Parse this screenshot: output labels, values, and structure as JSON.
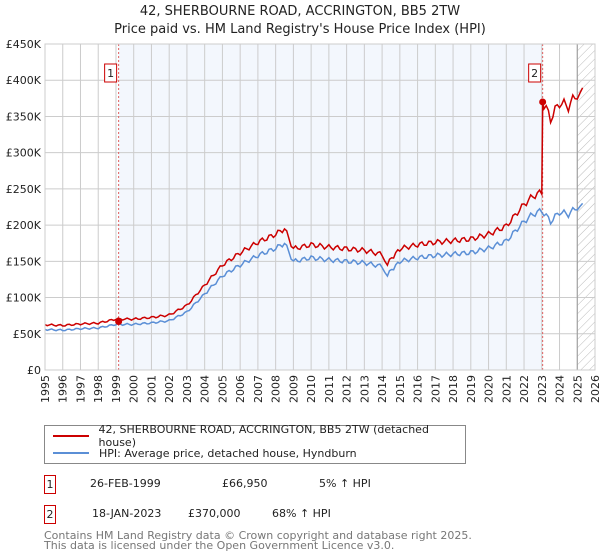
{
  "chart_data": {
    "type": "line",
    "title": "42, SHERBOURNE ROAD, ACCRINGTON, BB5 2TW",
    "subtitle": "Price paid vs. HM Land Registry's House Price Index (HPI)",
    "xlim": [
      1995,
      2026
    ],
    "ylim": [
      0,
      450000
    ],
    "x_ticks": [
      "1995",
      "1996",
      "1997",
      "1998",
      "1999",
      "2000",
      "2001",
      "2002",
      "2003",
      "2004",
      "2005",
      "2006",
      "2007",
      "2008",
      "2009",
      "2010",
      "2011",
      "2012",
      "2013",
      "2014",
      "2015",
      "2016",
      "2017",
      "2018",
      "2019",
      "2020",
      "2021",
      "2022",
      "2023",
      "2024",
      "2025",
      "2026"
    ],
    "y_ticks": [
      {
        "v": 0,
        "label": "£0"
      },
      {
        "v": 50000,
        "label": "£50K"
      },
      {
        "v": 100000,
        "label": "£100K"
      },
      {
        "v": 150000,
        "label": "£150K"
      },
      {
        "v": 200000,
        "label": "£200K"
      },
      {
        "v": 250000,
        "label": "£250K"
      },
      {
        "v": 300000,
        "label": "£300K"
      },
      {
        "v": 350000,
        "label": "£350K"
      },
      {
        "v": 400000,
        "label": "£400K"
      },
      {
        "v": 450000,
        "label": "£450K"
      }
    ],
    "grid": true,
    "hpi": {
      "x": [
        1995,
        1996,
        1997,
        1998,
        1999,
        2000,
        2001,
        2002,
        2003,
        2004,
        2005,
        2006,
        2007,
        2008,
        2008.5,
        2009,
        2010,
        2011,
        2012,
        2013,
        2014,
        2014.3,
        2015,
        2016,
        2017,
        2018,
        2019,
        2020,
        2021,
        2022,
        2022.5,
        2023,
        2023.5,
        2024,
        2024.5,
        2025,
        2025.3
      ],
      "y": [
        56000,
        55000,
        57000,
        58000,
        63000,
        63000,
        65000,
        68000,
        80000,
        105000,
        130000,
        145000,
        158000,
        168000,
        175000,
        150000,
        155000,
        152000,
        150000,
        148000,
        143000,
        132000,
        150000,
        155000,
        158000,
        160000,
        162000,
        168000,
        178000,
        205000,
        215000,
        220000,
        205000,
        218000,
        215000,
        225000,
        230000
      ]
    },
    "series": [
      {
        "name": "42, SHERBOURNE ROAD, ACCRINGTON, BB5 2TW (detached house)",
        "color": "#cc0000"
      },
      {
        "name": "HPI: Average price, detached house, Hyndburn",
        "color": "#5b8fd6"
      }
    ],
    "sales": [
      {
        "n": "1",
        "x": 1999.15,
        "y": 66950,
        "date": "26-FEB-1999",
        "price": "£66,950",
        "hpi": "5% ↑ HPI"
      },
      {
        "n": "2",
        "x": 2023.05,
        "y": 370000,
        "date": "18-JAN-2023",
        "price": "£370,000",
        "hpi": "68% ↑ HPI"
      }
    ],
    "forecast_start": 2025.0,
    "footer1": "Contains HM Land Registry data © Crown copyright and database right 2025.",
    "footer2": "This data is licensed under the Open Government Licence v3.0."
  }
}
